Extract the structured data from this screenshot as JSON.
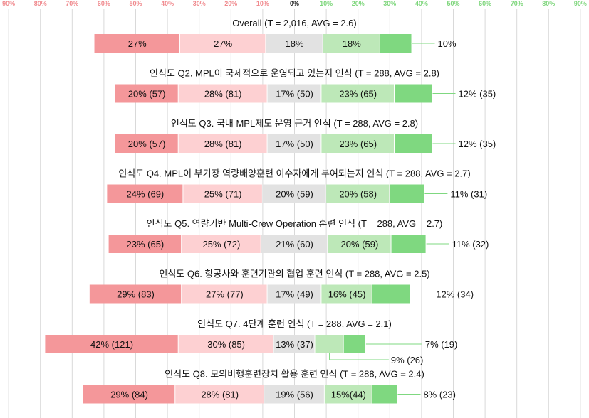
{
  "chart_data": {
    "type": "bar",
    "orientation": "horizontal-diverging-stacked",
    "axis_ticks": [
      "90%",
      "80%",
      "70%",
      "60%",
      "50%",
      "40%",
      "30%",
      "20%",
      "10%",
      "0%",
      "10%",
      "20%",
      "30%",
      "40%",
      "50%",
      "60%",
      "70%",
      "80%",
      "90%"
    ],
    "xlim": [
      -90,
      90
    ],
    "grid": true,
    "legend": "none",
    "colors": {
      "seg1": "#f4979a",
      "seg2": "#fdd0d2",
      "seg3": "#e2e2e2",
      "seg4": "#bde8b8",
      "seg5": "#7fd880",
      "neg_tick": "#f08a8e",
      "pos_tick": "#7ed67c",
      "neutral_tick": "#222222",
      "leader": "#7fd880",
      "grid": "#d9d9d9"
    },
    "groups": [
      {
        "title": "Overall (T = 2,016, AVG = 2.6)",
        "values": [
          27,
          27,
          18,
          18,
          10
        ],
        "labels": [
          "27%",
          "27%",
          "18%",
          "18%",
          ""
        ],
        "outside_labels": [
          "10%"
        ]
      },
      {
        "title": "인식도 Q2. MPL이 국제적으로 운영되고 있는지 인식 (T = 288, AVG = 2.8)",
        "values": [
          20,
          28,
          17,
          23,
          12
        ],
        "labels": [
          "20% (57)",
          "28% (81)",
          "17% (50)",
          "23% (65)",
          ""
        ],
        "outside_labels": [
          "12% (35)"
        ]
      },
      {
        "title": "인식도 Q3. 국내 MPL제도 운영 근거 인식 (T = 288, AVG = 2.8)",
        "values": [
          20,
          28,
          17,
          23,
          12
        ],
        "labels": [
          "20% (57)",
          "28% (81)",
          "17% (50)",
          "23% (65)",
          ""
        ],
        "outside_labels": [
          "12% (35)"
        ]
      },
      {
        "title": "인식도 Q4. MPL이 부기장 역량배양훈련 이수자에게 부여되는지 인식 (T = 288, AVG = 2.7)",
        "values": [
          24,
          25,
          20,
          20,
          11
        ],
        "labels": [
          "24% (69)",
          "25% (71)",
          "20% (59)",
          "20% (58)",
          ""
        ],
        "outside_labels": [
          "11% (31)"
        ]
      },
      {
        "title": "인식도 Q5. 역량기반 Multi-Crew Operation 훈련 인식 (T = 288, AVG = 2.7)",
        "values": [
          23,
          25,
          21,
          20,
          11
        ],
        "labels": [
          "23% (65)",
          "25% (72)",
          "21% (60)",
          "20% (59)",
          ""
        ],
        "outside_labels": [
          "11% (32)"
        ]
      },
      {
        "title": "인식도 Q6. 항공사와 훈련기관의 협업 훈련 인식 (T = 288, AVG = 2.5)",
        "values": [
          29,
          27,
          17,
          16,
          12
        ],
        "labels": [
          "29% (83)",
          "27% (77)",
          "17% (49)",
          "16% (45)",
          ""
        ],
        "outside_labels": [
          "12% (34)"
        ]
      },
      {
        "title": "인식도 Q7. 4단계 훈련 인식 (T = 288, AVG = 2.1)",
        "values": [
          42,
          30,
          13,
          9,
          7
        ],
        "labels": [
          "42% (121)",
          "30% (85)",
          "13% (37)",
          "",
          ""
        ],
        "outside_labels": [
          "9% (26)",
          "7% (19)"
        ]
      },
      {
        "title": "인식도 Q8. 모의비행훈련장치 활용 훈련 인식 (T = 288, AVG = 2.4)",
        "values": [
          29,
          28,
          19,
          15,
          8
        ],
        "labels": [
          "29% (84)",
          "28% (81)",
          "19% (56)",
          "15%(44)",
          ""
        ],
        "outside_labels": [
          "8% (23)"
        ]
      }
    ]
  }
}
